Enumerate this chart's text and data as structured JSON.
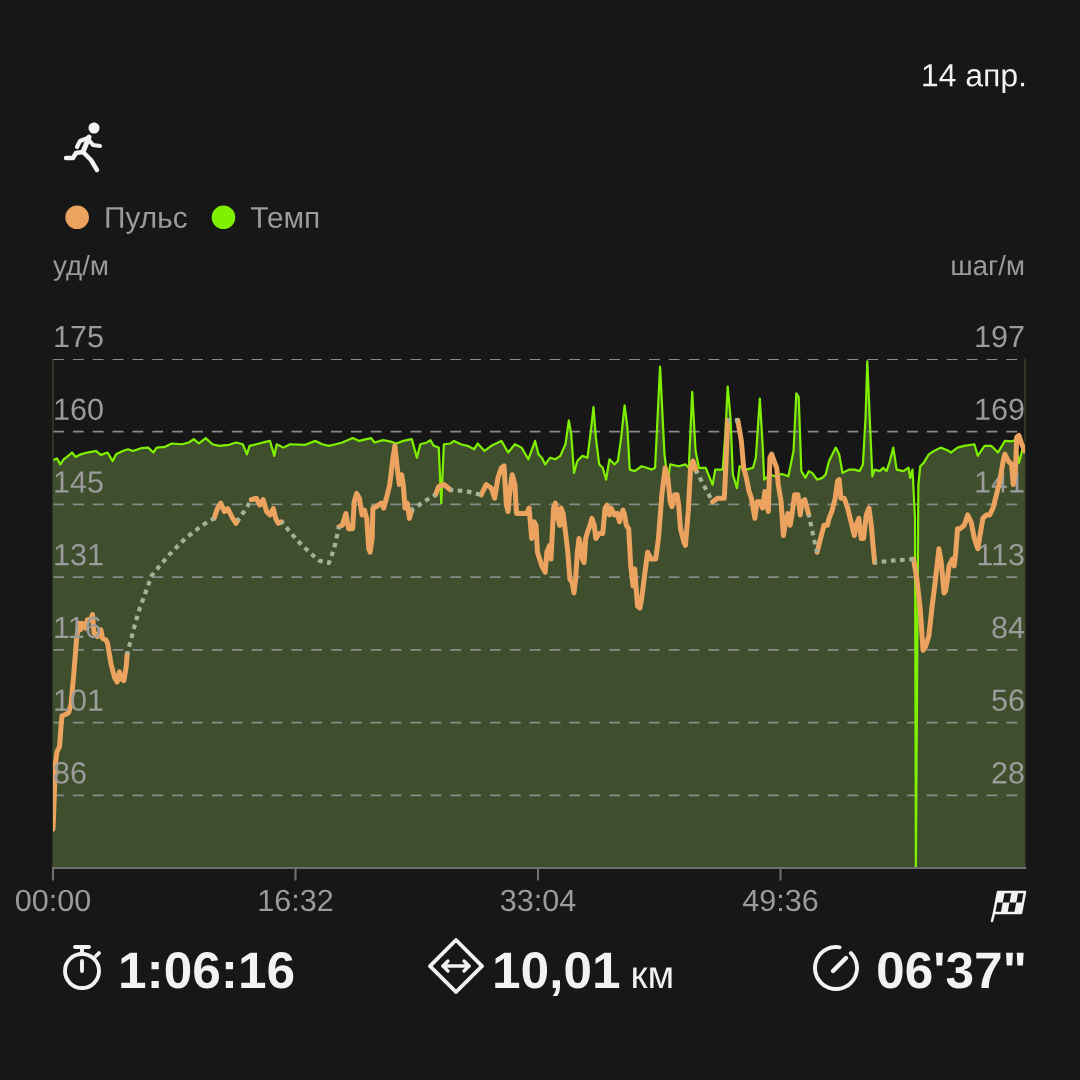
{
  "chart_data": {
    "type": "line",
    "subtitle": "14 апр.",
    "ylabel": "уд/м",
    "y2label": "шаг/м",
    "annotations": [
      "1:06:16",
      "10,01",
      "км",
      "06'37\""
    ],
    "xlim": [
      0,
      66.27
    ],
    "xticks": [
      {
        "value": 0,
        "label": "00:00"
      },
      {
        "value": 16.533,
        "label": "16:32"
      },
      {
        "value": 33.067,
        "label": "33:04"
      },
      {
        "value": 49.6,
        "label": "49:36"
      }
    ],
    "ylim": [
      71.2,
      175
    ],
    "yticks": [
      {
        "value": 86.03,
        "label": "86"
      },
      {
        "value": 100.86,
        "label": "101"
      },
      {
        "value": 115.69,
        "label": "116"
      },
      {
        "value": 130.51,
        "label": "131"
      },
      {
        "value": 145.34,
        "label": "145"
      },
      {
        "value": 160.17,
        "label": "160"
      },
      175
    ],
    "y2lim": [
      0,
      197
    ],
    "y2ticks": [
      {
        "value": 28.14,
        "label": "28"
      },
      {
        "value": 56.29,
        "label": "56"
      },
      {
        "value": 84.43,
        "label": "84"
      },
      {
        "value": 112.57,
        "label": "113"
      },
      {
        "value": 140.71,
        "label": "141"
      },
      {
        "value": 168.86,
        "label": "169"
      },
      197
    ],
    "grid": "y",
    "legend": "top left",
    "series": [
      {
        "name": "Пульс",
        "color": "#eca35f",
        "x": [
          0,
          0.08,
          0.15,
          0.27,
          0.45,
          0.54,
          0.61,
          0.84,
          1.07,
          1.23,
          1.42,
          1.6,
          1.76,
          1.88,
          1.99,
          2.23,
          2.34,
          2.57,
          2.69,
          2.8,
          3.03,
          3.26,
          3.38,
          3.61,
          3.72,
          3.95,
          4.19,
          4.37,
          4.53,
          4.65,
          4.83,
          4.99,
          5.06,
          8.0,
          10.98,
          11.21,
          11.44,
          11.68,
          11.91,
          12.25,
          12.48,
          12.6,
          13.06,
          13.52,
          13.86,
          14.1,
          14.33,
          14.56,
          14.79,
          15.02,
          15.18,
          15.36,
          15.59,
          17.5,
          19.5,
          19.73,
          19.97,
          20.15,
          20.43,
          20.54,
          20.7,
          20.89,
          21.07,
          21.23,
          21.39,
          21.53,
          21.62,
          21.76,
          21.81,
          22.04,
          22.39,
          22.55,
          22.73,
          22.96,
          23.15,
          23.31,
          23.47,
          23.61,
          23.77,
          23.88,
          24.0,
          24.16,
          24.3,
          24.46,
          25.27,
          26.07,
          26.3,
          26.65,
          27.11,
          28.15,
          29.19,
          29.53,
          29.88,
          30.11,
          30.34,
          30.57,
          30.75,
          30.91,
          31.03,
          31.14,
          31.31,
          31.49,
          31.6,
          31.95,
          32.3,
          32.46,
          32.64,
          32.8,
          32.93,
          33.03,
          33.33,
          33.56,
          33.67,
          33.86,
          33.95,
          34.13,
          34.25,
          34.36,
          34.55,
          34.64,
          34.78,
          34.94,
          35.1,
          35.24,
          35.4,
          35.52,
          35.63,
          35.75,
          35.86,
          35.98,
          36.09,
          36.21,
          36.32,
          36.44,
          36.62,
          36.74,
          36.9,
          37.01,
          37.24,
          37.48,
          37.64,
          37.77,
          37.94,
          38.05,
          38.28,
          38.47,
          38.63,
          38.74,
          38.86,
          38.97,
          39.09,
          39.25,
          39.39,
          39.55,
          39.66,
          39.85,
          40.01,
          40.13,
          40.36,
          40.54,
          40.77,
          41.09,
          41.28,
          41.51,
          41.74,
          41.92,
          42.08,
          42.2,
          42.38,
          42.55,
          42.66,
          42.78,
          43.01,
          43.12,
          43.31,
          43.47,
          43.63,
          43.86,
          44.4,
          44.97,
          45.31,
          45.77,
          45.89,
          46.0,
          46.35,
          46.69,
          46.93,
          47.09,
          47.27,
          47.46,
          47.62,
          47.85,
          48.01,
          48.19,
          48.38,
          48.54,
          48.65,
          48.77,
          48.88,
          49.0,
          49.16,
          49.34,
          49.45,
          49.64,
          49.8,
          49.91,
          50.1,
          50.26,
          50.38,
          50.56,
          50.79,
          50.95,
          51.07,
          51.25,
          51.41,
          51.53,
          51.8,
          52.1,
          52.33,
          52.57,
          52.8,
          52.91,
          53.1,
          53.33,
          53.49,
          53.6,
          53.72,
          53.95,
          54.18,
          54.41,
          54.64,
          54.76,
          54.94,
          55.1,
          55.26,
          55.45,
          55.63,
          55.79,
          55.91,
          56.02,
          57.3,
          58.67,
          58.9,
          59.13,
          59.32,
          59.48,
          59.71,
          59.94,
          60.17,
          60.4,
          60.56,
          60.75,
          60.86,
          60.98,
          61.09,
          61.32,
          61.44,
          61.55,
          61.67,
          61.85,
          62.13,
          62.36,
          62.59,
          62.82,
          63.05,
          63.28,
          63.4,
          63.63,
          63.86,
          64.09,
          64.32,
          64.55,
          64.78,
          64.9,
          65.13,
          65.36,
          65.47,
          65.63,
          65.7,
          65.86,
          66.05,
          66.26
        ],
        "values": [
          79.1,
          85.3,
          92.2,
          94.9,
          96.0,
          99.8,
          102.2,
          102.5,
          102.9,
          104.6,
          110.8,
          117.7,
          121.1,
          119.8,
          121.1,
          120.1,
          121.8,
          121.8,
          122.9,
          119.1,
          118.4,
          119.8,
          118.0,
          117.7,
          117.0,
          112.9,
          110.1,
          109.1,
          111.2,
          109.8,
          109.4,
          112.2,
          114.9,
          null,
          142.5,
          144.5,
          145.6,
          143.9,
          144.5,
          142.5,
          141.5,
          142.1,
          null,
          146.3,
          146.6,
          145.2,
          146.3,
          143.9,
          143.2,
          144.5,
          142.5,
          141.5,
          141.8,
          null,
          140.8,
          141.1,
          143.5,
          140.4,
          140.4,
          145.9,
          147.6,
          146.6,
          143.2,
          144.2,
          142.5,
          136.3,
          135.6,
          138.4,
          144.6,
          144.9,
          145.6,
          144.6,
          146.6,
          149.4,
          154.2,
          157.3,
          152.8,
          149.4,
          151.4,
          149.4,
          144.6,
          145.6,
          142.5,
          144.2,
          null,
          147.3,
          149.0,
          149.4,
          148.3,
          null,
          147.3,
          149.4,
          148.7,
          146.6,
          150.8,
          152.8,
          153.2,
          145.2,
          143.9,
          148.0,
          151.4,
          149.4,
          143.5,
          143.5,
          143.5,
          144.6,
          138.4,
          141.8,
          141.1,
          135.6,
          132.8,
          131.5,
          135.6,
          137.0,
          134.2,
          144.6,
          145.6,
          143.2,
          141.1,
          144.6,
          143.5,
          139.7,
          135.6,
          130.1,
          129.4,
          127.3,
          130.1,
          135.6,
          138.4,
          137.0,
          134.2,
          133.5,
          138.4,
          139.7,
          141.1,
          142.5,
          141.1,
          138.4,
          139.4,
          139.4,
          144.6,
          145.2,
          143.2,
          144.6,
          143.2,
          143.5,
          141.8,
          143.2,
          144.2,
          143.2,
          141.1,
          140.4,
          132.8,
          128.7,
          132.2,
          124.6,
          124.2,
          126.0,
          131.5,
          135.6,
          134.2,
          134.2,
          138.4,
          147.3,
          152.8,
          150.8,
          145.9,
          144.9,
          147.3,
          147.3,
          145.2,
          140.4,
          137.7,
          137.0,
          143.9,
          152.8,
          154.2,
          152.1,
          null,
          145.9,
          146.6,
          146.6,
          154.2,
          162.5,
          null,
          162.5,
          158.3,
          152.8,
          150.8,
          148.0,
          146.6,
          142.5,
          145.9,
          145.9,
          144.6,
          148.0,
          145.9,
          143.9,
          154.9,
          155.6,
          154.2,
          152.8,
          149.4,
          145.9,
          139.0,
          141.1,
          143.5,
          141.1,
          143.2,
          147.3,
          147.3,
          143.2,
          145.9,
          146.3,
          144.6,
          143.2,
          null,
          135.6,
          138.4,
          141.1,
          141.1,
          142.5,
          143.9,
          146.6,
          150.1,
          150.4,
          146.6,
          146.6,
          144.6,
          141.8,
          139.0,
          141.1,
          142.5,
          138.4,
          138.4,
          143.2,
          144.6,
          141.1,
          137.0,
          133.5,
          null,
          134.2,
          130.1,
          123.9,
          115.6,
          116.3,
          118.4,
          124.6,
          130.1,
          136.3,
          133.5,
          127.3,
          127.7,
          130.1,
          132.8,
          134.2,
          132.8,
          135.6,
          140.4,
          140.4,
          141.1,
          143.2,
          141.8,
          138.4,
          136.3,
          140.4,
          142.5,
          143.2,
          143.2,
          144.6,
          147.3,
          150.1,
          154.2,
          155.6,
          154.2,
          153.5,
          149.4,
          152.8,
          159.0,
          159.4,
          157.6,
          156.2
        ]
      },
      {
        "line_style": "dotted",
        "color": "#a3b39b",
        "x": [
          5.06,
          5.8,
          6.72,
          7.87,
          9.02,
          10.18,
          10.98,
          11.8,
          12.6,
          13.17,
          13.52,
          14.5,
          15.59,
          16.17,
          16.97,
          18.12,
          18.81,
          19.16,
          19.5,
          22,
          24.46,
          25.27,
          26.07,
          26.6,
          27.11,
          28.26,
          29.19,
          36,
          43.86,
          44.97,
          45.5,
          46.0,
          46.69,
          49,
          51.53,
          51.87,
          52.1,
          54,
          56.02,
          57.29,
          58.67
        ],
        "values": [
          114.9,
          123.2,
          130.8,
          134.9,
          138.4,
          141.1,
          142.5,
          null,
          142.1,
          144.5,
          146.3,
          null,
          141.8,
          139.7,
          137.0,
          133.9,
          133.4,
          136.3,
          140.8,
          null,
          144.2,
          145.9,
          147.3,
          null,
          148.3,
          148.0,
          147.3,
          null,
          152.1,
          145.9,
          null,
          162.5,
          162.5,
          null,
          143.2,
          138.4,
          135.6,
          null,
          133.5,
          133.9,
          134.2
        ]
      },
      {
        "name": "Темп",
        "type": "area",
        "axis": "y2",
        "color": "#7ff000",
        "x": [
          0,
          0.27,
          0.5,
          0.73,
          0.96,
          1.3,
          1.53,
          1.88,
          2.34,
          2.92,
          3.26,
          3.72,
          4.07,
          4.3,
          4.76,
          5.11,
          5.45,
          6.03,
          6.49,
          6.84,
          7.07,
          7.64,
          8.1,
          8.79,
          9.26,
          9.6,
          9.95,
          10.41,
          10.87,
          11.33,
          12.02,
          12.48,
          12.94,
          13.22,
          13.4,
          13.86,
          14.33,
          14.79,
          15.09,
          15.25,
          15.71,
          16.17,
          17.2,
          17.89,
          18.35,
          18.81,
          19.27,
          19.73,
          20.43,
          20.89,
          21.35,
          21.69,
          21.92,
          22.5,
          22.96,
          23.42,
          23.88,
          24.46,
          24.81,
          25.04,
          25.5,
          25.73,
          25.96,
          26.3,
          26.47,
          26.65,
          27.11,
          27.34,
          27.8,
          28.26,
          28.72,
          28.95,
          29.42,
          29.88,
          30.57,
          31.03,
          31.49,
          31.95,
          32.41,
          32.87,
          33.1,
          33.33,
          33.56,
          33.9,
          34.25,
          34.59,
          34.94,
          35.17,
          35.33,
          35.52,
          35.75,
          36.09,
          36.44,
          36.67,
          36.85,
          37.01,
          37.24,
          37.48,
          37.71,
          37.94,
          38.28,
          38.51,
          38.74,
          38.97,
          39.16,
          39.32,
          39.66,
          40.13,
          40.47,
          40.82,
          41.05,
          41.39,
          41.69,
          41.92,
          42.08,
          42.66,
          43.12,
          43.35,
          43.58,
          43.81,
          44.04,
          44.5,
          44.97,
          45.15,
          45.66,
          45.84,
          46.0,
          46.19,
          46.35,
          46.63,
          46.81,
          47.27,
          47.73,
          47.92,
          48.19,
          48.38,
          48.49,
          48.88,
          49.23,
          49.68,
          50.14,
          50.49,
          50.68,
          50.84,
          51.02,
          51.3,
          51.53,
          51.76,
          52.1,
          52.45,
          52.68,
          52.91,
          53.37,
          53.6,
          53.83,
          54.06,
          54.29,
          54.64,
          54.99,
          55.22,
          55.4,
          55.52,
          55.68,
          55.86,
          56.02,
          56.37,
          56.6,
          56.83,
          57.06,
          57.29,
          57.52,
          57.98,
          58.33,
          58.44,
          58.6,
          58.77,
          58.83,
          59.0,
          59.13,
          59.36,
          59.71,
          60.06,
          60.52,
          60.98,
          61.21,
          61.67,
          62.13,
          62.82,
          63.05,
          63.51,
          63.97,
          64.43,
          64.9,
          65.36,
          65.59,
          65.86,
          66.16,
          66.26
        ],
        "values": [
          157.8,
          158.5,
          156.2,
          158.2,
          159.1,
          160.8,
          159.1,
          160.1,
          160.8,
          161.4,
          159.9,
          160.8,
          157.5,
          160.1,
          161.4,
          162.1,
          161.4,
          162.5,
          162.7,
          160.8,
          162.7,
          163.0,
          164.3,
          164.0,
          164.7,
          166.0,
          164.3,
          166.4,
          164.0,
          163.4,
          163.8,
          164.7,
          164.0,
          160.1,
          163.4,
          164.0,
          164.7,
          165.3,
          159.5,
          164.0,
          162.7,
          164.0,
          163.8,
          165.3,
          164.0,
          163.4,
          164.0,
          164.7,
          166.4,
          165.3,
          166.0,
          166.4,
          164.7,
          165.6,
          165.1,
          164.3,
          165.3,
          166.0,
          158.8,
          164.0,
          164.7,
          165.6,
          163.4,
          162.7,
          141.2,
          164.0,
          164.3,
          165.3,
          164.0,
          163.4,
          162.1,
          164.3,
          161.4,
          163.4,
          165.3,
          160.8,
          164.0,
          162.7,
          158.2,
          165.3,
          160.1,
          158.8,
          156.2,
          158.8,
          158.2,
          159.5,
          164.0,
          173.2,
          168.0,
          152.9,
          157.5,
          159.5,
          158.8,
          169.3,
          178.4,
          166.7,
          156.2,
          154.9,
          150.3,
          158.2,
          156.2,
          157.5,
          166.7,
          179.1,
          170.6,
          154.2,
          153.6,
          155.5,
          154.9,
          154.2,
          154.9,
          194.1,
          160.1,
          149.6,
          156.2,
          155.5,
          156.2,
          154.9,
          184.3,
          161.4,
          154.9,
          154.9,
          148.3,
          154.2,
          154.2,
          168.0,
          186.3,
          174.5,
          152.3,
          147.0,
          155.5,
          154.2,
          154.9,
          158.8,
          181.7,
          164.0,
          150.3,
          152.3,
          151.6,
          152.5,
          151.6,
          161.4,
          183.7,
          182.3,
          153.6,
          151.0,
          153.6,
          152.9,
          150.3,
          151.0,
          152.3,
          157.5,
          162.7,
          160.1,
          152.9,
          153.6,
          154.2,
          154.2,
          153.6,
          156.2,
          174.5,
          196.1,
          174.5,
          151.6,
          154.2,
          153.6,
          154.9,
          153.6,
          157.5,
          162.7,
          154.2,
          153.6,
          154.9,
          151.0,
          154.2,
          135.3,
          0,
          148.3,
          155.5,
          156.8,
          160.1,
          161.4,
          162.7,
          161.7,
          160.8,
          162.7,
          163.4,
          164.0,
          159.5,
          163.4,
          163.4,
          160.8,
          165.3,
          165.1,
          165.6,
          156.8,
          163.4,
          161.4
        ]
      }
    ]
  }
}
